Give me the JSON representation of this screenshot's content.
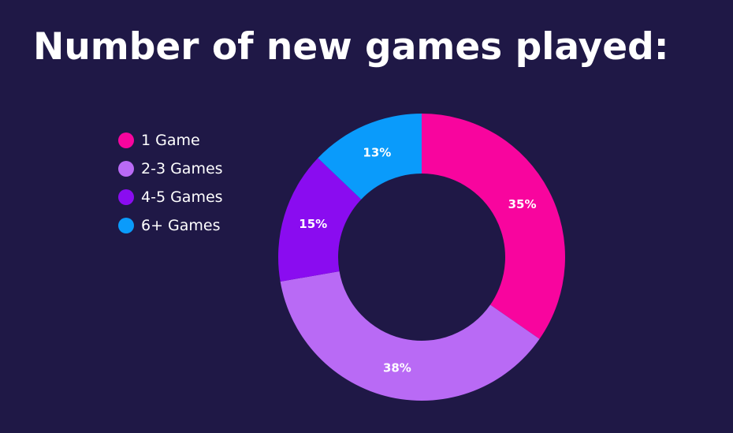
{
  "chart_data": {
    "type": "pie",
    "title": "Number of new games played:",
    "categories": [
      "1 Game",
      "2-3 Games",
      "4-5 Games",
      "6+ Games"
    ],
    "values": [
      35,
      38,
      15,
      13
    ],
    "labels": [
      "35%",
      "38%",
      "15%",
      "13%"
    ],
    "colors": [
      "#f8059e",
      "#b96af5",
      "#8a0cf0",
      "#0a9bfb"
    ],
    "legend_position": "left",
    "donut": true
  }
}
